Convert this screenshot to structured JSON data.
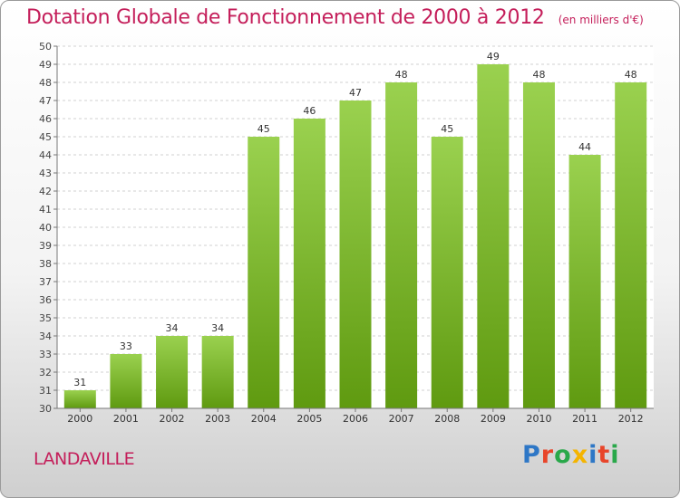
{
  "header": {
    "title": "Dotation Globale de Fonctionnement de 2000 à 2012",
    "subtitle": "(en milliers d'€)"
  },
  "footer": {
    "location": "LANDAVILLE",
    "logo_text": "Proxiti",
    "logo_colors": [
      "#2e77c6",
      "#e8452a",
      "#29a84a",
      "#f4b400",
      "#2e77c6",
      "#e8452a",
      "#29a84a"
    ]
  },
  "colors": {
    "bar_top": "#9ad14f",
    "bar_bottom": "#5f9a10",
    "title": "#c41e5a"
  },
  "chart_data": {
    "type": "bar",
    "categories": [
      "2000",
      "2001",
      "2002",
      "2003",
      "2004",
      "2005",
      "2006",
      "2007",
      "2008",
      "2009",
      "2010",
      "2011",
      "2012"
    ],
    "values": [
      31,
      33,
      34,
      34,
      45,
      46,
      47,
      48,
      45,
      49,
      48,
      44,
      48
    ],
    "ylim": [
      30,
      50
    ],
    "yticks": [
      30,
      31,
      32,
      33,
      34,
      35,
      36,
      37,
      38,
      39,
      40,
      41,
      42,
      43,
      44,
      45,
      46,
      47,
      48,
      49,
      50
    ],
    "grid": true,
    "data_labels": true
  }
}
